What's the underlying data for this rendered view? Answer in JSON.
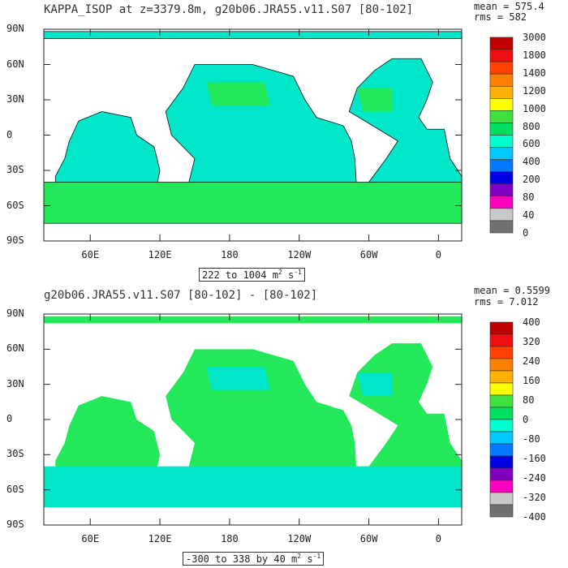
{
  "panels": [
    {
      "title": "KAPPA_ISOP at z=3379.8m, g20b06.JRA55.v11.S07 [80-102]",
      "stats": {
        "mean": "mean = 575.4",
        "rms": "rms = 582"
      },
      "range_prefix": "222 to 1004 m",
      "range_unit_exp1": "2",
      "range_mid": " s",
      "range_unit_exp2": "-1"
    },
    {
      "title": "g20b06.JRA55.v11.S07 [80-102] -  [80-102]",
      "stats": {
        "mean": "mean = 0.5599",
        "rms": "rms = 7.012"
      },
      "range_prefix": "-300 to 338 by 40 m",
      "range_unit_exp1": "2",
      "range_mid": " s",
      "range_unit_exp2": "-1"
    }
  ],
  "chart_data": [
    {
      "type": "heatmap",
      "title": "KAPPA_ISOP at z=3379.8m, g20b06.JRA55.v11.S07 [80-102]",
      "x_ticks": [
        "60E",
        "120E",
        "180",
        "120W",
        "60W",
        "0"
      ],
      "y_ticks": [
        "90N",
        "60N",
        "30N",
        "0",
        "30S",
        "60S",
        "90S"
      ],
      "xlim_lon": [
        20,
        380
      ],
      "ylim_lat": [
        -90,
        90
      ],
      "colorbar": {
        "levels": [
          "3000",
          "1800",
          "1400",
          "1200",
          "1000",
          "800",
          "600",
          "400",
          "200",
          "80",
          "40",
          "0"
        ],
        "colors": [
          "#c00000",
          "#ee1010",
          "#ff4000",
          "#ff8000",
          "#ffb000",
          "#ffff00",
          "#40e040",
          "#00e060",
          "#00ffd0",
          "#00c8ff",
          "#0078ff",
          "#0000e0",
          "#8000c0",
          "#ff00c0",
          "#c8c8c8",
          "#707070"
        ]
      },
      "mean": 575.4,
      "rms": 582,
      "range": "222 to 1004",
      "dominant_value_range": "400-600 over most oceans, 600-800 in western basins"
    },
    {
      "type": "heatmap",
      "title": "g20b06.JRA55.v11.S07 [80-102] -  [80-102]",
      "x_ticks": [
        "60E",
        "120E",
        "180",
        "120W",
        "60W",
        "0"
      ],
      "y_ticks": [
        "90N",
        "60N",
        "30N",
        "0",
        "30S",
        "60S",
        "90S"
      ],
      "xlim_lon": [
        20,
        380
      ],
      "ylim_lat": [
        -90,
        90
      ],
      "colorbar": {
        "levels": [
          "400",
          "320",
          "240",
          "160",
          "80",
          "0",
          "-80",
          "-160",
          "-240",
          "-320",
          "-400"
        ],
        "colors": [
          "#c00000",
          "#ee1010",
          "#ff4000",
          "#ff8000",
          "#ffb000",
          "#ffff00",
          "#40e040",
          "#00e060",
          "#00ffd0",
          "#00c8ff",
          "#0078ff",
          "#0000e0",
          "#8000c0",
          "#ff00c0",
          "#c8c8c8",
          "#707070"
        ]
      },
      "mean": 0.5599,
      "rms": 7.012,
      "range": "-300 to 338 by 40",
      "dominant_value_range": "0 to 40 over most oceans, -40 to 0 in Southern Ocean"
    }
  ]
}
